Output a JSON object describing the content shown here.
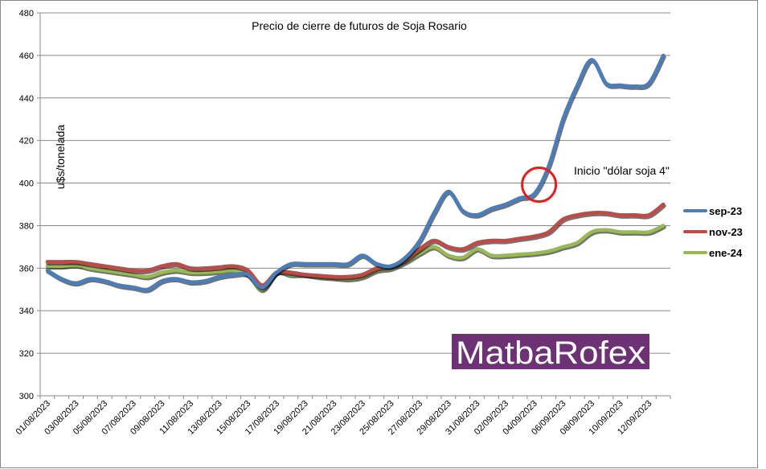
{
  "chart_data": {
    "type": "line",
    "title": "Precio de cierre de futuros de Soja Rosario",
    "ylabel": "u$s/tonelada",
    "xlabel": "",
    "ylim": [
      300,
      480
    ],
    "yticks": [
      300,
      320,
      340,
      360,
      380,
      400,
      420,
      440,
      460,
      480
    ],
    "grid": true,
    "legend_position": "right",
    "x_tick_labels": [
      "01/08/2023",
      "03/08/2023",
      "05/08/2023",
      "07/08/2023",
      "09/08/2023",
      "11/08/2023",
      "13/08/2023",
      "15/08/2023",
      "17/08/2023",
      "19/08/2023",
      "21/08/2023",
      "23/08/2023",
      "25/08/2023",
      "27/08/2023",
      "29/08/2023",
      "31/08/2023",
      "02/09/2023",
      "04/09/2023",
      "06/09/2023",
      "08/09/2023",
      "10/09/2023",
      "12/09/2023"
    ],
    "x_start": "2023-08-01",
    "series": [
      {
        "name": "sep-23",
        "color": "#4a7ebb",
        "points": [
          [
            "2023-08-01",
            359
          ],
          [
            "2023-08-02",
            355
          ],
          [
            "2023-08-03",
            353
          ],
          [
            "2023-08-04",
            355
          ],
          [
            "2023-08-05",
            354
          ],
          [
            "2023-08-06",
            352
          ],
          [
            "2023-08-07",
            351
          ],
          [
            "2023-08-08",
            350
          ],
          [
            "2023-08-09",
            354
          ],
          [
            "2023-08-10",
            355
          ],
          [
            "2023-08-11",
            353.5
          ],
          [
            "2023-08-12",
            354
          ],
          [
            "2023-08-13",
            356
          ],
          [
            "2023-08-14",
            357
          ],
          [
            "2023-08-15",
            357
          ],
          [
            "2023-08-16",
            351
          ],
          [
            "2023-08-17",
            358
          ],
          [
            "2023-08-18",
            362
          ],
          [
            "2023-08-19",
            362
          ],
          [
            "2023-08-20",
            362
          ],
          [
            "2023-08-21",
            362
          ],
          [
            "2023-08-22",
            362
          ],
          [
            "2023-08-23",
            366
          ],
          [
            "2023-08-24",
            362
          ],
          [
            "2023-08-25",
            361
          ],
          [
            "2023-08-26",
            365
          ],
          [
            "2023-08-27",
            373
          ],
          [
            "2023-08-28",
            386
          ],
          [
            "2023-08-29",
            396
          ],
          [
            "2023-08-30",
            387
          ],
          [
            "2023-08-31",
            385
          ],
          [
            "2023-09-01",
            388
          ],
          [
            "2023-09-02",
            390
          ],
          [
            "2023-09-03",
            393
          ],
          [
            "2023-09-04",
            395
          ],
          [
            "2023-09-05",
            408
          ],
          [
            "2023-09-06",
            430
          ],
          [
            "2023-09-07",
            446
          ],
          [
            "2023-09-08",
            458
          ],
          [
            "2023-09-09",
            447
          ],
          [
            "2023-09-10",
            446
          ],
          [
            "2023-09-11",
            445.5
          ],
          [
            "2023-09-12",
            447
          ],
          [
            "2023-09-13",
            460
          ]
        ]
      },
      {
        "name": "nov-23",
        "color": "#be4b48",
        "points": [
          [
            "2023-08-01",
            363
          ],
          [
            "2023-08-02",
            363
          ],
          [
            "2023-08-03",
            363
          ],
          [
            "2023-08-04",
            362
          ],
          [
            "2023-08-05",
            361
          ],
          [
            "2023-08-06",
            360
          ],
          [
            "2023-08-07",
            359
          ],
          [
            "2023-08-08",
            359
          ],
          [
            "2023-08-09",
            361
          ],
          [
            "2023-08-10",
            362
          ],
          [
            "2023-08-11",
            360
          ],
          [
            "2023-08-12",
            360
          ],
          [
            "2023-08-13",
            360.5
          ],
          [
            "2023-08-14",
            361
          ],
          [
            "2023-08-15",
            359
          ],
          [
            "2023-08-16",
            352
          ],
          [
            "2023-08-17",
            358
          ],
          [
            "2023-08-18",
            358
          ],
          [
            "2023-08-19",
            357
          ],
          [
            "2023-08-20",
            356.5
          ],
          [
            "2023-08-21",
            356
          ],
          [
            "2023-08-22",
            356
          ],
          [
            "2023-08-23",
            357
          ],
          [
            "2023-08-24",
            360
          ],
          [
            "2023-08-25",
            361
          ],
          [
            "2023-08-26",
            364
          ],
          [
            "2023-08-27",
            369
          ],
          [
            "2023-08-28",
            373
          ],
          [
            "2023-08-29",
            370
          ],
          [
            "2023-08-30",
            369
          ],
          [
            "2023-08-31",
            372
          ],
          [
            "2023-09-01",
            373
          ],
          [
            "2023-09-02",
            373
          ],
          [
            "2023-09-03",
            374
          ],
          [
            "2023-09-04",
            375
          ],
          [
            "2023-09-05",
            377
          ],
          [
            "2023-09-06",
            383
          ],
          [
            "2023-09-07",
            385
          ],
          [
            "2023-09-08",
            386
          ],
          [
            "2023-09-09",
            386
          ],
          [
            "2023-09-10",
            385
          ],
          [
            "2023-09-11",
            385
          ],
          [
            "2023-09-12",
            385
          ],
          [
            "2023-09-13",
            390
          ]
        ]
      },
      {
        "name": "ene-24",
        "color": "#98b954",
        "points": [
          [
            "2023-08-01",
            361
          ],
          [
            "2023-08-02",
            361
          ],
          [
            "2023-08-03",
            361.5
          ],
          [
            "2023-08-04",
            360
          ],
          [
            "2023-08-05",
            359
          ],
          [
            "2023-08-06",
            358
          ],
          [
            "2023-08-07",
            357
          ],
          [
            "2023-08-08",
            356
          ],
          [
            "2023-08-09",
            358
          ],
          [
            "2023-08-10",
            359
          ],
          [
            "2023-08-11",
            358
          ],
          [
            "2023-08-12",
            358
          ],
          [
            "2023-08-13",
            358.5
          ],
          [
            "2023-08-14",
            359
          ],
          [
            "2023-08-15",
            357
          ],
          [
            "2023-08-16",
            350
          ],
          [
            "2023-08-17",
            358
          ],
          [
            "2023-08-18",
            357
          ],
          [
            "2023-08-19",
            357
          ],
          [
            "2023-08-20",
            356
          ],
          [
            "2023-08-21",
            355.5
          ],
          [
            "2023-08-22",
            355
          ],
          [
            "2023-08-23",
            356
          ],
          [
            "2023-08-24",
            359
          ],
          [
            "2023-08-25",
            360
          ],
          [
            "2023-08-26",
            363
          ],
          [
            "2023-08-27",
            367
          ],
          [
            "2023-08-28",
            370
          ],
          [
            "2023-08-29",
            366
          ],
          [
            "2023-08-30",
            365
          ],
          [
            "2023-08-31",
            369
          ],
          [
            "2023-09-01",
            366
          ],
          [
            "2023-09-02",
            366
          ],
          [
            "2023-09-03",
            366.5
          ],
          [
            "2023-09-04",
            367
          ],
          [
            "2023-09-05",
            368
          ],
          [
            "2023-09-06",
            370
          ],
          [
            "2023-09-07",
            372
          ],
          [
            "2023-09-08",
            377
          ],
          [
            "2023-09-09",
            378
          ],
          [
            "2023-09-10",
            377
          ],
          [
            "2023-09-11",
            377
          ],
          [
            "2023-09-12",
            377
          ],
          [
            "2023-09-13",
            380
          ]
        ]
      }
    ],
    "annotations": [
      {
        "text": "Inicio \"dólar soja 4\"",
        "x": "2023-09-05",
        "y": 400,
        "marker": "circle",
        "marker_color": "#e41f1f"
      }
    ],
    "watermark": {
      "text": "MatbaRofex",
      "background": "#6c3273"
    },
    "colors": {
      "grid": "#888888",
      "axis": "#888888",
      "background": "#ffffff"
    }
  }
}
